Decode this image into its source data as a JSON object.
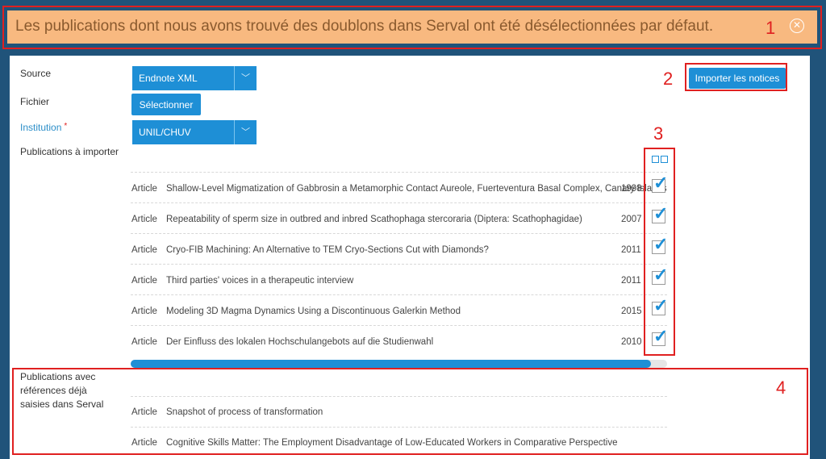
{
  "alert": {
    "message": "Les publications dont nous avons trouvé des doublons dans Serval ont été désélectionnées par défaut.",
    "close_icon": "close-circle-icon"
  },
  "annotations": [
    "1",
    "2",
    "3",
    "4"
  ],
  "form": {
    "source_label": "Source",
    "source_value": "Endnote XML",
    "file_label": "Fichier",
    "file_button": "Sélectionner",
    "institution_label": "Institution",
    "institution_required": "*",
    "institution_value": "UNIL/CHUV",
    "publications_label": "Publications à importer",
    "import_button": "Importer les notices"
  },
  "publications": [
    {
      "type": "Article",
      "title": "Shallow-Level Migmatization of Gabbrosin a Metamorphic Contact Aureole, Fuerteventura Basal Complex, Canary Islands",
      "year": "1998",
      "checked": true
    },
    {
      "type": "Article",
      "title": "Repeatability of sperm size in outbred and inbred Scathophaga stercoraria (Diptera: Scathophagidae)",
      "year": "2007",
      "checked": true
    },
    {
      "type": "Article",
      "title": "Cryo-FIB Machining: An Alternative to TEM Cryo-Sections Cut with Diamonds?",
      "year": "2011",
      "checked": true
    },
    {
      "type": "Article",
      "title": "Third parties' voices in a therapeutic interview",
      "year": "2011",
      "checked": true
    },
    {
      "type": "Article",
      "title": "Modeling 3D Magma Dynamics Using a Discontinuous Galerkin Method",
      "year": "2015",
      "checked": true
    },
    {
      "type": "Article",
      "title": "Der Einfluss des lokalen Hochschulangebots auf die Studienwahl",
      "year": "2010",
      "checked": true
    }
  ],
  "scroll_progress": 0.97,
  "duplicates": {
    "label": "Publications avec références déjà saisies dans Serval",
    "items": [
      {
        "type": "Article",
        "title": "Snapshot of process of transformation"
      },
      {
        "type": "Article",
        "title": "Cognitive Skills Matter: The Employment Disadvantage of Low-Educated Workers in Comparative Perspective"
      }
    ]
  },
  "colors": {
    "accent": "#1e8fd6",
    "alert_bg": "#f8b980",
    "annotation_red": "#e02020",
    "page_bg": "#20537a"
  }
}
